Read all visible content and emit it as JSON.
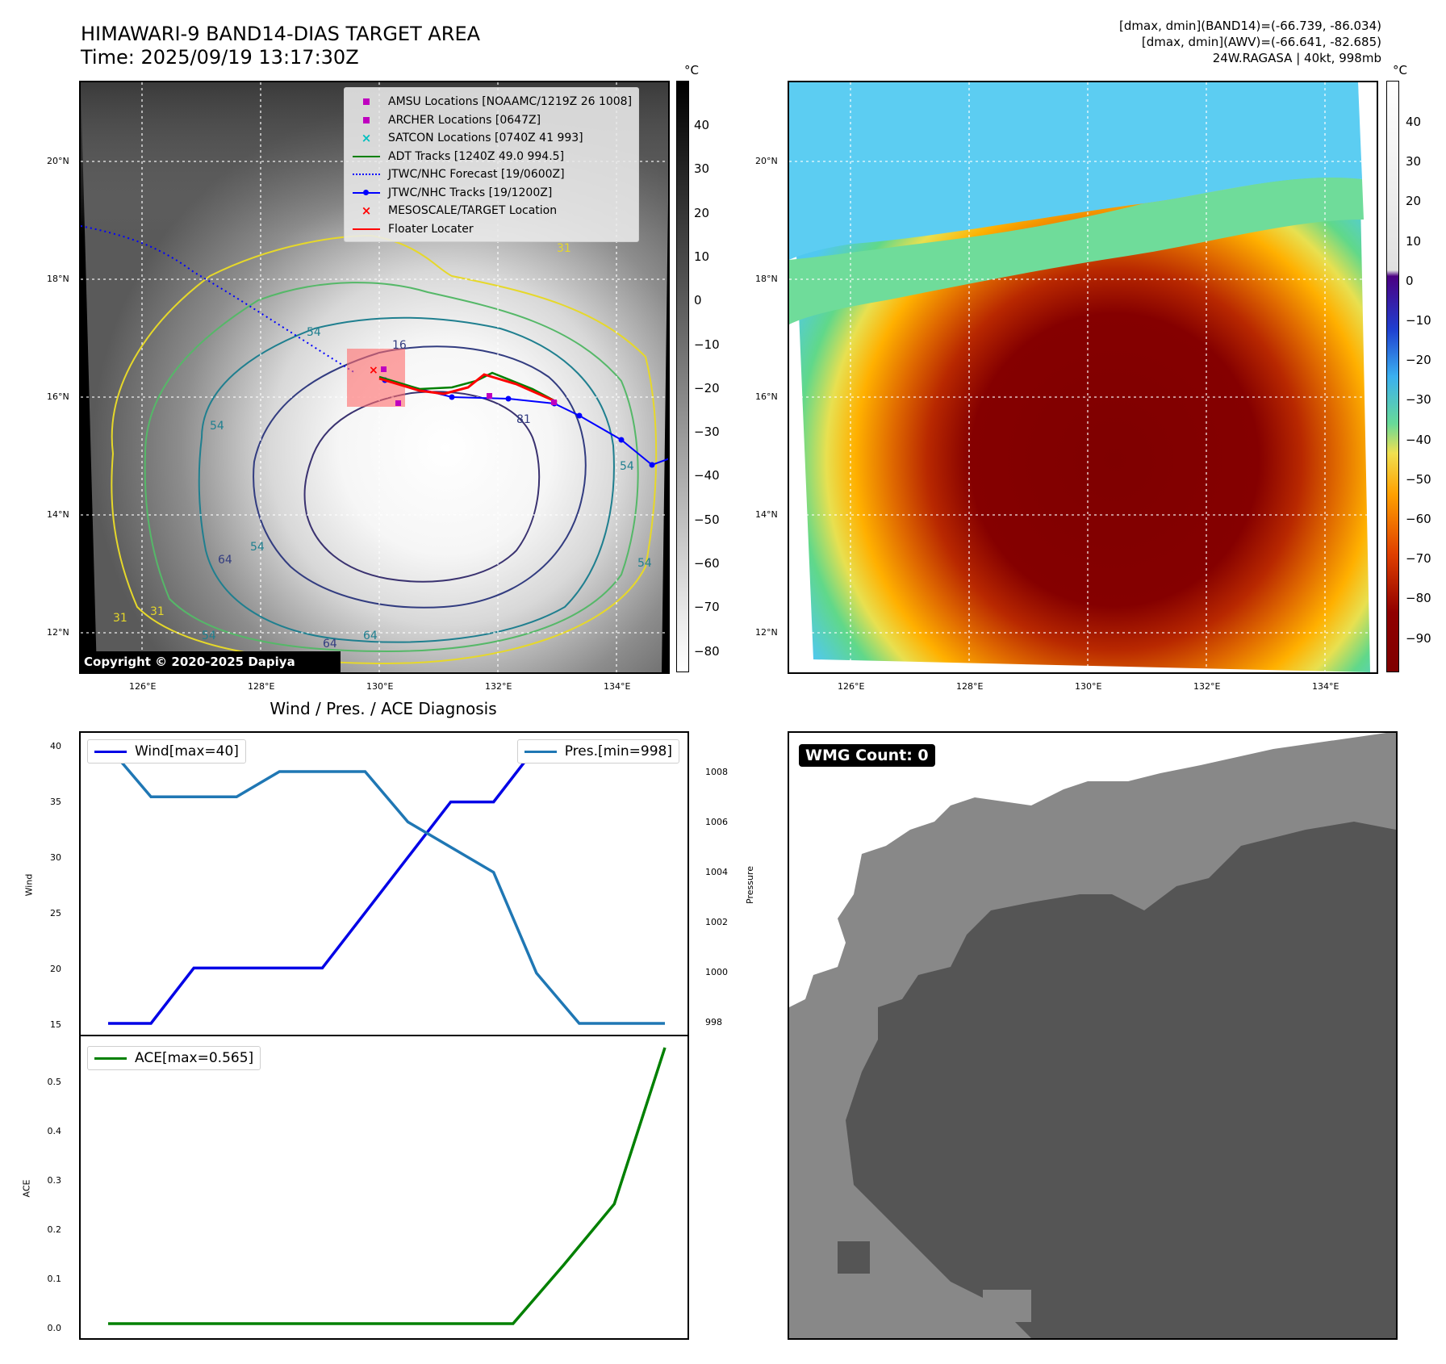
{
  "header": {
    "title_line1": "HIMAWARI-9 BAND14-DIAS TARGET AREA",
    "title_line2": "Time: 2025/09/19 13:17:30Z",
    "info_line1": "[dmax, dmin](BAND14)=(-66.739, -86.034)",
    "info_line2": "[dmax, dmin](AWV)=(-66.641, -82.685)",
    "info_line3": "24W.RAGASA | 40kt, 998mb"
  },
  "map": {
    "lat_labels": [
      "20°N",
      "18°N",
      "16°N",
      "14°N",
      "12°N"
    ],
    "lon_labels": [
      "126°E",
      "128°E",
      "130°E",
      "132°E",
      "134°E"
    ],
    "copyright": "Copyright © 2020-2025 Dapiya",
    "contour_labels": [
      "16",
      "54",
      "81",
      "31",
      "54",
      "64",
      "54",
      "64",
      "54",
      "31",
      "54",
      "64",
      "54",
      "31"
    ]
  },
  "legend": {
    "items": [
      {
        "label": "AMSU Locations [NOAAMC/1219Z 26 1008]",
        "marker": "square",
        "color": "#bf00bf"
      },
      {
        "label": "ARCHER Locations [0647Z]",
        "marker": "square",
        "color": "#bf00bf"
      },
      {
        "label": "SATCON Locations [0740Z 41 993]",
        "marker": "x",
        "color": "#00bfbf"
      },
      {
        "label": "ADT Tracks [1240Z 49.0 994.5]",
        "marker": "line",
        "color": "#008000"
      },
      {
        "label": "JTWC/NHC Forecast [19/0600Z]",
        "marker": "dotted",
        "color": "#0000ff"
      },
      {
        "label": "JTWC/NHC Tracks [19/1200Z]",
        "marker": "line-dot",
        "color": "#0000ff"
      },
      {
        "label": "MESOSCALE/TARGET Location",
        "marker": "x",
        "color": "#ff0000"
      },
      {
        "label": "Floater Locater",
        "marker": "line",
        "color": "#ff0000"
      }
    ]
  },
  "colorbar_left": {
    "unit": "°C",
    "ticks": [
      "40",
      "30",
      "20",
      "10",
      "0",
      "−10",
      "−20",
      "−30",
      "−40",
      "−50",
      "−60",
      "−70",
      "−80"
    ]
  },
  "colorbar_right": {
    "unit": "°C",
    "ticks": [
      "40",
      "30",
      "20",
      "10",
      "0",
      "−10",
      "−20",
      "−30",
      "−40",
      "−50",
      "−60",
      "−70",
      "−80",
      "−90"
    ]
  },
  "diagnosis": {
    "title": "Wind / Pres. / ACE Diagnosis",
    "wind_legend": "Wind[max=40]",
    "pres_legend": "Pres.[min=998]",
    "ace_legend": "ACE[max=0.565]",
    "wind_axis_label": "Wind",
    "pres_axis_label": "Pressure",
    "ace_axis_label": "ACE",
    "wind_ticks": [
      "40",
      "35",
      "30",
      "25",
      "20",
      "15"
    ],
    "pres_ticks": [
      "1008",
      "1006",
      "1004",
      "1002",
      "1000",
      "998"
    ],
    "ace_ticks": [
      "0.5",
      "0.4",
      "0.3",
      "0.2",
      "0.1",
      "0.0"
    ],
    "colors": {
      "wind": "#0000e6",
      "pres": "#1f77b4",
      "ace": "#008000"
    }
  },
  "chart_data": [
    {
      "type": "line",
      "name": "wind",
      "ylabel": "Wind",
      "ylim": [
        15,
        40
      ],
      "x": [
        0,
        1,
        2,
        3,
        4,
        5,
        6,
        7,
        8,
        9,
        10,
        11,
        12,
        13
      ],
      "values": [
        15,
        15,
        20,
        20,
        20,
        20,
        25,
        30,
        35,
        35,
        40,
        40,
        40,
        40
      ]
    },
    {
      "type": "line",
      "name": "pressure",
      "ylabel": "Pressure",
      "ylim": [
        998,
        1008
      ],
      "x": [
        0,
        1,
        2,
        3,
        4,
        5,
        6,
        7,
        8,
        9,
        10,
        11,
        12,
        13
      ],
      "values": [
        1009,
        1007,
        1007,
        1007,
        1008,
        1008,
        1008,
        1006,
        1005,
        1004,
        1000,
        998,
        998,
        998
      ]
    },
    {
      "type": "line",
      "name": "ace",
      "ylabel": "ACE",
      "ylim": [
        0,
        0.565
      ],
      "x": [
        0,
        1,
        2,
        3,
        4,
        5,
        6,
        7,
        8,
        9,
        10,
        11
      ],
      "values": [
        0,
        0,
        0,
        0,
        0,
        0,
        0,
        0,
        0,
        0.12,
        0.245,
        0.565
      ]
    }
  ],
  "wmg": {
    "label": "WMG Count: 0"
  }
}
